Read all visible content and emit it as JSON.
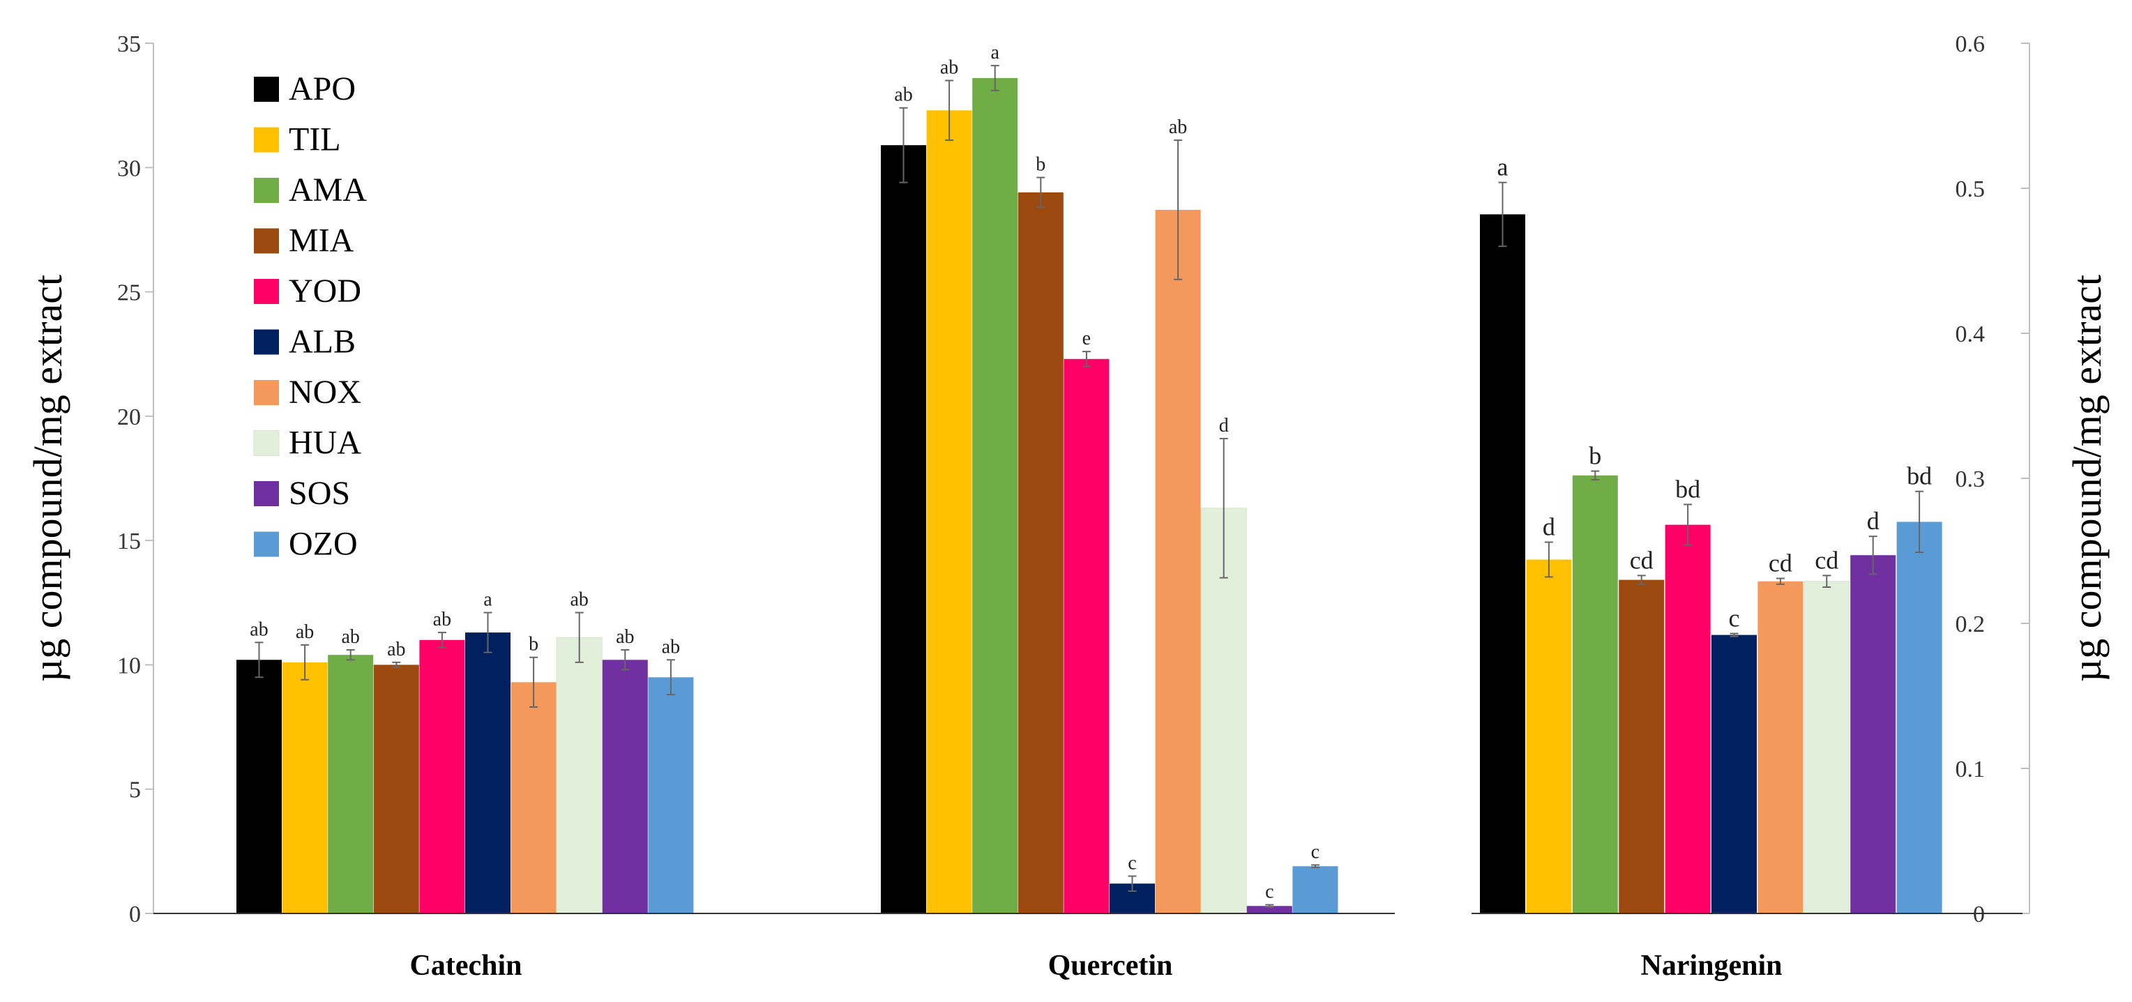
{
  "chart_data": {
    "type": "bar",
    "categories": [
      "Catechin",
      "Quercetin",
      "Naringenin"
    ],
    "series": [
      {
        "name": "APO",
        "color": "#000000",
        "values": [
          10.2,
          30.9,
          0.482
        ],
        "errors": [
          0.7,
          1.5,
          0.022
        ],
        "labels": [
          "ab",
          "ab",
          "a"
        ]
      },
      {
        "name": "TIL",
        "color": "#FFC000",
        "values": [
          10.1,
          32.3,
          0.244
        ],
        "errors": [
          0.7,
          1.2,
          0.012
        ],
        "labels": [
          "ab",
          "ab",
          "d"
        ]
      },
      {
        "name": "AMA",
        "color": "#70AD47",
        "values": [
          10.4,
          33.6,
          0.302
        ],
        "errors": [
          0.2,
          0.5,
          0.003
        ],
        "labels": [
          "ab",
          "a",
          "b"
        ]
      },
      {
        "name": "MIA",
        "color": "#9C4A0F",
        "values": [
          10.0,
          29.0,
          0.23
        ],
        "errors": [
          0.1,
          0.6,
          0.003
        ],
        "labels": [
          "ab",
          "b",
          "cd"
        ]
      },
      {
        "name": "YOD",
        "color": "#FF0066",
        "values": [
          11.0,
          22.3,
          0.268
        ],
        "errors": [
          0.3,
          0.3,
          0.014
        ],
        "labels": [
          "ab",
          "e",
          "bd"
        ]
      },
      {
        "name": "ALB",
        "color": "#002060",
        "values": [
          11.3,
          1.2,
          0.192
        ],
        "errors": [
          0.8,
          0.3,
          0.001
        ],
        "labels": [
          "a",
          "c",
          "c"
        ]
      },
      {
        "name": "NOX",
        "color": "#F4995B",
        "values": [
          9.3,
          28.3,
          0.229
        ],
        "errors": [
          1.0,
          2.8,
          0.002
        ],
        "labels": [
          "b",
          "ab",
          "cd"
        ]
      },
      {
        "name": "HUA",
        "color": "#E2EFDA",
        "values": [
          11.1,
          16.3,
          0.229
        ],
        "errors": [
          1.0,
          2.8,
          0.004
        ],
        "labels": [
          "ab",
          "d",
          "cd"
        ]
      },
      {
        "name": "SOS",
        "color": "#7030A0",
        "values": [
          10.2,
          0.3,
          0.247
        ],
        "errors": [
          0.4,
          0.05,
          0.013
        ],
        "labels": [
          "ab",
          "c",
          "d"
        ]
      },
      {
        "name": "OZO",
        "color": "#5B9BD5",
        "values": [
          9.5,
          1.9,
          0.27
        ],
        "errors": [
          0.7,
          0.05,
          0.021
        ],
        "labels": [
          "ab",
          "c",
          "bd"
        ]
      }
    ],
    "axis_series_map": {
      "left": [
        "Catechin",
        "Quercetin"
      ],
      "right": [
        "Naringenin"
      ]
    },
    "y_left": {
      "label": "µg compound/mg extract",
      "ylim": [
        0,
        35
      ],
      "ticks": [
        "0",
        "5",
        "10",
        "15",
        "20",
        "25",
        "30",
        "35"
      ]
    },
    "y_right": {
      "label": "µg compound/mg extract",
      "ylim": [
        0,
        0.6
      ],
      "ticks": [
        "0",
        "0.1",
        "0.2",
        "0.3",
        "0.4",
        "0.5",
        "0.6"
      ]
    },
    "legend_position": "top-left",
    "grid": false
  }
}
